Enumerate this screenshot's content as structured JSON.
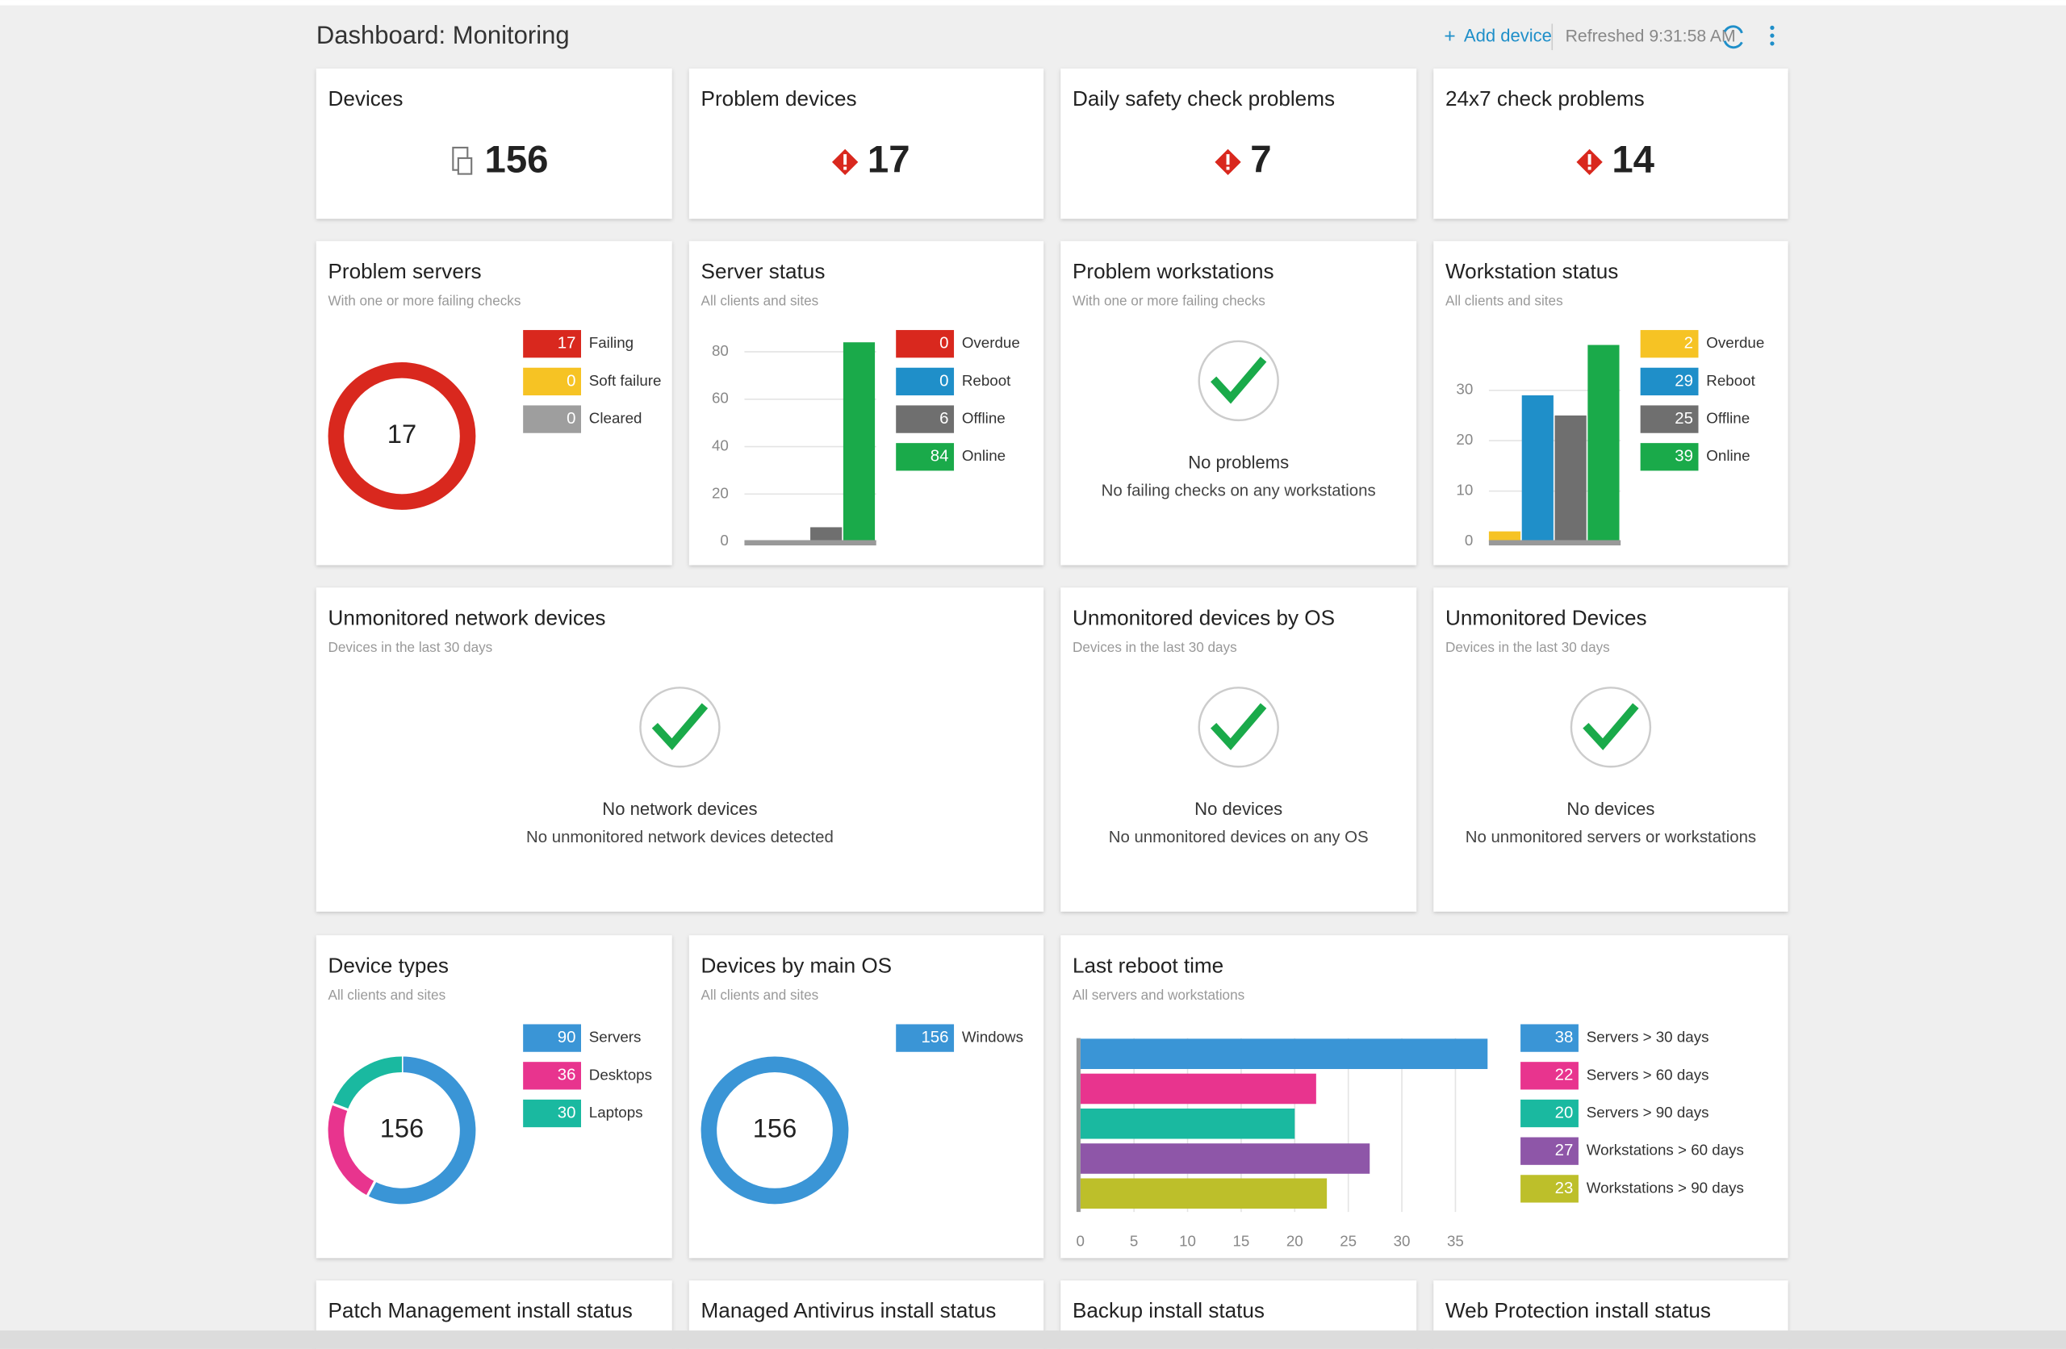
{
  "header": {
    "title": "Dashboard: Monitoring",
    "add_device": "Add device",
    "refreshed": "Refreshed 9:31:58 AM"
  },
  "cards": [
    {
      "type": "stat",
      "title": "Devices",
      "value": 156
    },
    {
      "type": "stat",
      "title": "Problem devices",
      "value": 17
    },
    {
      "type": "stat",
      "title": "Daily safety check problems",
      "value": 7
    },
    {
      "type": "stat",
      "title": "24x7 check problems",
      "value": 14
    },
    {
      "type": "donut",
      "title": "Problem servers",
      "subtitle": "With one or more failing checks",
      "center": 17,
      "series": [
        {
          "name": "Failing",
          "value": 17,
          "color": "#d9281e"
        },
        {
          "name": "Soft failure",
          "value": 0,
          "color": "#f6c324"
        },
        {
          "name": "Cleared",
          "value": 0,
          "color": "#9e9e9e"
        }
      ]
    },
    {
      "type": "bar",
      "title": "Server status",
      "subtitle": "All clients and sites",
      "ylim": [
        0,
        85
      ],
      "yticks": [
        0,
        20,
        40,
        60,
        80
      ],
      "series": [
        {
          "name": "Overdue",
          "value": 0,
          "color": "#d9281e"
        },
        {
          "name": "Reboot",
          "value": 0,
          "color": "#1f8fc9"
        },
        {
          "name": "Offline",
          "value": 6,
          "color": "#6f6f6f"
        },
        {
          "name": "Online",
          "value": 84,
          "color": "#1aaa4a"
        }
      ]
    },
    {
      "type": "empty",
      "title": "Problem workstations",
      "subtitle": "With one or more failing checks",
      "status": "No problems",
      "detail": "No failing checks on any workstations"
    },
    {
      "type": "bar",
      "title": "Workstation status",
      "subtitle": "All clients and sites",
      "ylim": [
        0,
        40
      ],
      "yticks": [
        0,
        10,
        20,
        30
      ],
      "series": [
        {
          "name": "Overdue",
          "value": 2,
          "color": "#f6c324"
        },
        {
          "name": "Reboot",
          "value": 29,
          "color": "#1f8fc9"
        },
        {
          "name": "Offline",
          "value": 25,
          "color": "#6f6f6f"
        },
        {
          "name": "Online",
          "value": 39,
          "color": "#1aaa4a"
        }
      ]
    },
    {
      "type": "empty",
      "title": "Unmonitored network devices",
      "subtitle": "Devices in the last 30 days",
      "status": "No network devices",
      "detail": "No unmonitored network devices detected"
    },
    {
      "type": "empty",
      "title": "Unmonitored devices by OS",
      "subtitle": "Devices in the last 30 days",
      "status": "No devices",
      "detail": "No unmonitored devices on any OS"
    },
    {
      "type": "empty",
      "title": "Unmonitored Devices",
      "subtitle": "Devices in the last 30 days",
      "status": "No devices",
      "detail": "No unmonitored servers or workstations"
    },
    {
      "type": "donut",
      "title": "Device types",
      "subtitle": "All clients and sites",
      "center": 156,
      "series": [
        {
          "name": "Servers",
          "value": 90,
          "color": "#3a95d6"
        },
        {
          "name": "Desktops",
          "value": 36,
          "color": "#e8348e"
        },
        {
          "name": "Laptops",
          "value": 30,
          "color": "#1ab9a0"
        }
      ]
    },
    {
      "type": "donut",
      "title": "Devices by main OS",
      "subtitle": "All clients and sites",
      "center": 156,
      "series": [
        {
          "name": "Windows",
          "value": 156,
          "color": "#3a95d6"
        }
      ]
    },
    {
      "type": "hbar",
      "title": "Last reboot time",
      "subtitle": "All servers and workstations",
      "xlim": [
        0,
        38
      ],
      "xticks": [
        0,
        5,
        10,
        15,
        20,
        25,
        30,
        35
      ],
      "series": [
        {
          "name": "Servers > 30 days",
          "value": 38,
          "color": "#3a95d6"
        },
        {
          "name": "Servers > 60 days",
          "value": 22,
          "color": "#e8348e"
        },
        {
          "name": "Servers > 90 days",
          "value": 20,
          "color": "#1ab9a0"
        },
        {
          "name": "Workstations > 60 days",
          "value": 27,
          "color": "#8e56a8"
        },
        {
          "name": "Workstations > 90 days",
          "value": 23,
          "color": "#bdbf2a"
        }
      ]
    },
    {
      "type": "stub",
      "title": "Patch Management install status"
    },
    {
      "type": "stub",
      "title": "Managed Antivirus install status"
    },
    {
      "type": "stub",
      "title": "Backup install status"
    },
    {
      "type": "stub",
      "title": "Web Protection install status"
    }
  ]
}
